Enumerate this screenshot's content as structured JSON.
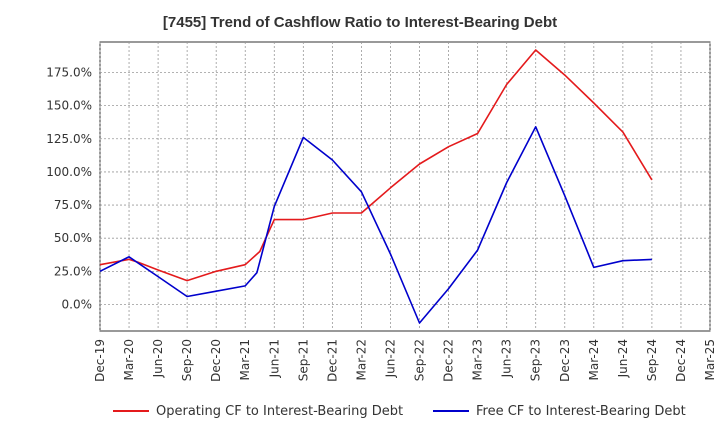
{
  "chart_data": {
    "type": "line",
    "title": "[7455]  Trend of Cashflow Ratio to Interest-Bearing Debt",
    "xlabel": "",
    "ylabel": "",
    "categories": [
      "Dec-19",
      "Mar-20",
      "Jun-20",
      "Sep-20",
      "Dec-20",
      "Mar-21",
      "Jun-21",
      "Sep-21",
      "Dec-21",
      "Mar-22",
      "Jun-22",
      "Sep-22",
      "Dec-22",
      "Mar-23",
      "Jun-23",
      "Sep-23",
      "Dec-23",
      "Mar-24",
      "Jun-24",
      "Sep-24",
      "Dec-24",
      "Mar-25"
    ],
    "ylim": [
      -20,
      198
    ],
    "yticks": [
      0,
      25,
      50,
      75,
      100,
      125,
      150,
      175
    ],
    "ytick_labels": [
      "0.0%",
      "25.0%",
      "50.0%",
      "75.0%",
      "100.0%",
      "125.0%",
      "150.0%",
      "175.0%"
    ],
    "grid": true,
    "legend_position": "bottom",
    "series": [
      {
        "name": "Operating CF to Interest-Bearing Debt",
        "color": "#e41a1c",
        "x": [
          0,
          1,
          1.3,
          2,
          3,
          4,
          5,
          5.5,
          6,
          7,
          8,
          9,
          10,
          11,
          12,
          13,
          14,
          15,
          16,
          17,
          18,
          19
        ],
        "y": [
          30,
          34,
          32,
          26,
          18,
          25,
          30,
          40,
          64,
          64,
          69,
          69,
          88,
          106,
          119,
          129,
          166,
          192,
          173,
          152,
          130,
          94
        ]
      },
      {
        "name": "Free CF to Interest-Bearing Debt",
        "color": "#0000cc",
        "x": [
          0,
          1,
          2,
          3,
          4,
          5,
          5.4,
          6,
          7,
          8,
          9,
          10,
          11,
          12,
          13,
          14,
          15,
          16,
          17,
          18,
          19
        ],
        "y": [
          25,
          36,
          21,
          6,
          10,
          14,
          24,
          74,
          126,
          109,
          85,
          38,
          -14,
          12,
          41,
          92,
          134,
          82,
          28,
          33,
          34
        ]
      }
    ]
  }
}
